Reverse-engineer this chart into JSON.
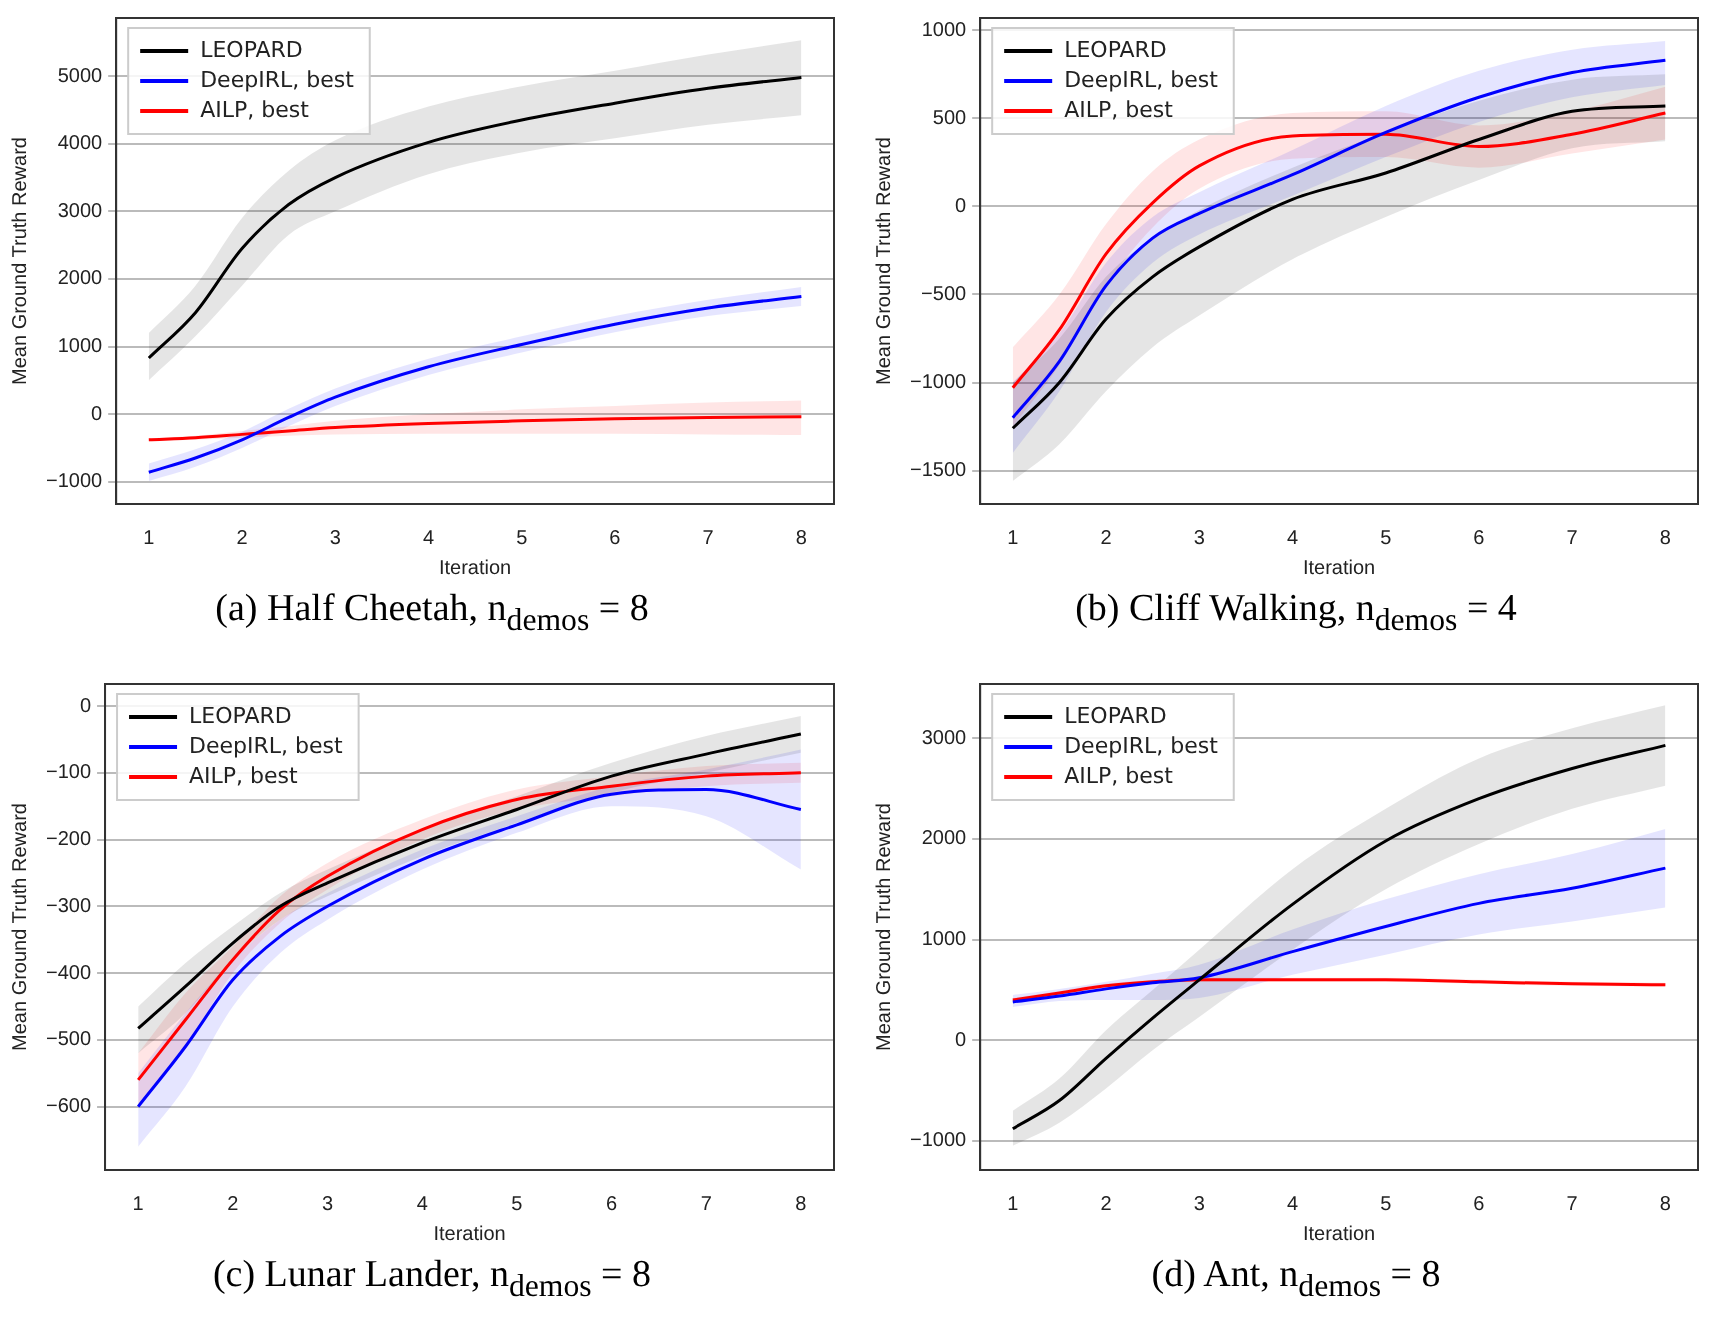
{
  "chart_data": [
    {
      "type": "line",
      "title": "(a) Half Cheetah, n$_{demos}$ = 8",
      "xlabel": "Iteration",
      "ylabel": "Mean Ground Truth Reward",
      "x": [
        1,
        1.5,
        2,
        2.5,
        3,
        4,
        5,
        6,
        7,
        8
      ],
      "xlim": [
        0.65,
        8.35
      ],
      "xticks": [
        1,
        2,
        3,
        4,
        5,
        6,
        7,
        8
      ],
      "ylim": [
        -1330,
        5860
      ],
      "yticks": [
        -1000,
        0,
        1000,
        2000,
        3000,
        4000,
        5000
      ],
      "grid": "y",
      "legend": "top left",
      "series": [
        {
          "name": "LEOPARD",
          "color": "#000000",
          "values": [
            830,
            1500,
            2450,
            3100,
            3500,
            4020,
            4350,
            4600,
            4820,
            4980
          ],
          "lower": [
            500,
            1150,
            1900,
            2650,
            3000,
            3550,
            3870,
            4080,
            4280,
            4420
          ],
          "upper": [
            1200,
            1900,
            2900,
            3600,
            4050,
            4550,
            4850,
            5080,
            5320,
            5530
          ]
        },
        {
          "name": "DeepIRL, best",
          "color": "#0000ff",
          "values": [
            -860,
            -650,
            -380,
            -50,
            250,
            700,
            1030,
            1330,
            1570,
            1740
          ],
          "lower": [
            -990,
            -780,
            -500,
            -180,
            120,
            580,
            910,
            1210,
            1450,
            1600
          ],
          "upper": [
            -730,
            -520,
            -260,
            80,
            380,
            820,
            1150,
            1450,
            1690,
            1880
          ]
        },
        {
          "name": "AILP, best",
          "color": "#ff0000",
          "values": [
            -380,
            -350,
            -300,
            -250,
            -200,
            -140,
            -100,
            -70,
            -50,
            -40
          ],
          "lower": [
            -400,
            -380,
            -350,
            -320,
            -300,
            -290,
            -290,
            -290,
            -300,
            -310
          ],
          "upper": [
            -360,
            -320,
            -250,
            -180,
            -100,
            0,
            70,
            120,
            170,
            200
          ]
        }
      ]
    },
    {
      "type": "line",
      "title": "(b) Cliff Walking, n$_{demos}$ = 4",
      "xlabel": "Iteration",
      "ylabel": "Mean Ground Truth Reward",
      "x": [
        1,
        1.5,
        2,
        2.5,
        3,
        4,
        5,
        6,
        7,
        8
      ],
      "xlim": [
        0.65,
        8.35
      ],
      "xticks": [
        1,
        2,
        3,
        4,
        5,
        6,
        7,
        8
      ],
      "ylim": [
        -1690,
        1070
      ],
      "yticks": [
        -1500,
        -1000,
        -500,
        0,
        500,
        1000
      ],
      "grid": "y",
      "legend": "top left",
      "series": [
        {
          "name": "LEOPARD",
          "color": "#000000",
          "values": [
            -1260,
            -1000,
            -640,
            -400,
            -230,
            40,
            190,
            380,
            540,
            570
          ],
          "lower": [
            -1560,
            -1350,
            -1050,
            -800,
            -620,
            -300,
            -60,
            150,
            330,
            370
          ],
          "upper": [
            -1000,
            -750,
            -400,
            -180,
            -20,
            220,
            420,
            600,
            720,
            750
          ]
        },
        {
          "name": "DeepIRL, best",
          "color": "#0000ff",
          "values": [
            -1200,
            -880,
            -450,
            -180,
            -40,
            180,
            420,
            620,
            760,
            830
          ],
          "lower": [
            -1400,
            -1050,
            -600,
            -320,
            -160,
            60,
            280,
            480,
            620,
            690
          ],
          "upper": [
            -1000,
            -720,
            -320,
            -60,
            80,
            320,
            570,
            770,
            890,
            940
          ]
        },
        {
          "name": "AILP, best",
          "color": "#ff0000",
          "values": [
            -1030,
            -700,
            -270,
            20,
            230,
            400,
            410,
            340,
            410,
            530
          ],
          "lower": [
            -1250,
            -900,
            -450,
            -120,
            100,
            270,
            280,
            220,
            300,
            380
          ],
          "upper": [
            -800,
            -500,
            -100,
            200,
            380,
            530,
            540,
            460,
            540,
            680
          ]
        }
      ]
    },
    {
      "type": "line",
      "title": "(c) Lunar Lander, n$_{demos}$ = 8",
      "xlabel": "Iteration",
      "ylabel": "Mean Ground Truth Reward",
      "x": [
        1,
        1.5,
        2,
        2.5,
        3,
        4,
        5,
        6,
        7,
        8
      ],
      "xlim": [
        0.65,
        8.35
      ],
      "xticks": [
        1,
        2,
        3,
        4,
        5,
        6,
        7,
        8
      ],
      "ylim": [
        -695,
        33
      ],
      "yticks": [
        -600,
        -500,
        -400,
        -300,
        -200,
        -100,
        0
      ],
      "grid": "y",
      "legend": "top left",
      "series": [
        {
          "name": "LEOPARD",
          "color": "#000000",
          "values": [
            -483,
            -420,
            -355,
            -300,
            -265,
            -205,
            -155,
            -105,
            -72,
            -42
          ],
          "lower": [
            -520,
            -460,
            -380,
            -320,
            -285,
            -225,
            -175,
            -130,
            -100,
            -70
          ],
          "upper": [
            -450,
            -385,
            -330,
            -280,
            -245,
            -185,
            -135,
            -85,
            -45,
            -15
          ]
        },
        {
          "name": "DeepIRL, best",
          "color": "#0000ff",
          "values": [
            -600,
            -510,
            -410,
            -345,
            -300,
            -230,
            -178,
            -132,
            -125,
            -155
          ],
          "lower": [
            -660,
            -570,
            -450,
            -370,
            -320,
            -245,
            -190,
            -150,
            -165,
            -245
          ],
          "upper": [
            -550,
            -460,
            -380,
            -320,
            -280,
            -215,
            -165,
            -120,
            -95,
            -65
          ]
        },
        {
          "name": "AILP, best",
          "color": "#ff0000",
          "values": [
            -560,
            -470,
            -380,
            -305,
            -255,
            -185,
            -140,
            -120,
            -105,
            -100
          ],
          "lower": [
            -600,
            -510,
            -400,
            -325,
            -275,
            -200,
            -155,
            -135,
            -120,
            -115
          ],
          "upper": [
            -520,
            -430,
            -360,
            -285,
            -235,
            -170,
            -125,
            -105,
            -90,
            -85
          ]
        }
      ]
    },
    {
      "type": "line",
      "title": "(d) Ant, n$_{demos}$ = 8",
      "xlabel": "Iteration",
      "ylabel": "Mean Ground Truth Reward",
      "x": [
        1,
        1.5,
        2,
        2.5,
        3,
        4,
        5,
        6,
        7,
        8
      ],
      "xlim": [
        0.65,
        8.35
      ],
      "xticks": [
        1,
        2,
        3,
        4,
        5,
        6,
        7,
        8
      ],
      "ylim": [
        -1290,
        3540
      ],
      "yticks": [
        -1000,
        0,
        1000,
        2000,
        3000
      ],
      "grid": "y",
      "legend": "top left",
      "series": [
        {
          "name": "LEOPARD",
          "color": "#000000",
          "values": [
            -880,
            -600,
            -180,
            220,
            600,
            1350,
            1980,
            2400,
            2700,
            2930
          ],
          "lower": [
            -1050,
            -820,
            -480,
            -100,
            230,
            900,
            1500,
            1950,
            2300,
            2530
          ],
          "upper": [
            -700,
            -380,
            100,
            500,
            900,
            1700,
            2300,
            2800,
            3100,
            3330
          ]
        },
        {
          "name": "DeepIRL, best",
          "color": "#0000ff",
          "values": [
            380,
            440,
            510,
            570,
            620,
            880,
            1130,
            1360,
            1510,
            1710
          ],
          "lower": [
            330,
            390,
            400,
            400,
            420,
            650,
            850,
            1050,
            1180,
            1320
          ],
          "upper": [
            450,
            510,
            580,
            660,
            750,
            1100,
            1400,
            1650,
            1850,
            2100
          ]
        },
        {
          "name": "AILP, best",
          "color": "#ff0000",
          "values": [
            400,
            470,
            540,
            580,
            600,
            600,
            600,
            580,
            560,
            550
          ],
          "lower": [
            380,
            450,
            520,
            560,
            580,
            580,
            580,
            560,
            540,
            530
          ],
          "upper": [
            420,
            490,
            560,
            600,
            620,
            620,
            620,
            600,
            580,
            570
          ]
        }
      ]
    }
  ]
}
